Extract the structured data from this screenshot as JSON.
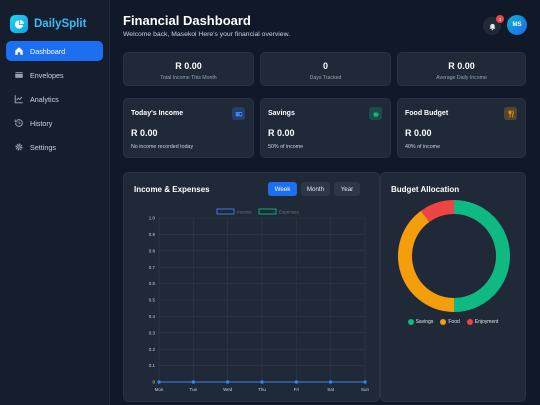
{
  "brand": {
    "name": "DailySplit"
  },
  "nav": [
    {
      "label": "Dashboard",
      "icon": "home-icon",
      "active": true
    },
    {
      "label": "Envelopes",
      "icon": "envelope-icon"
    },
    {
      "label": "Analytics",
      "icon": "line-chart-icon"
    },
    {
      "label": "History",
      "icon": "history-icon"
    },
    {
      "label": "Settings",
      "icon": "gear-icon"
    }
  ],
  "header": {
    "title": "Financial Dashboard",
    "subtitle": "Welcome back, Masekol Here's your financial overview.",
    "notification_count": "3",
    "avatar_initials": "MS"
  },
  "stats": [
    {
      "value": "R 0.00",
      "label": "Total Income This Month"
    },
    {
      "value": "0",
      "label": "Days Tracked"
    },
    {
      "value": "R 0.00",
      "label": "Average Daily Income"
    }
  ],
  "budget_cards": [
    {
      "title": "Today's Income",
      "amount": "R 0.00",
      "note": "No income recorded today",
      "icon": "wallet-icon",
      "color": "#3b82f6"
    },
    {
      "title": "Savings",
      "amount": "R 0.00",
      "note": "50% of income",
      "icon": "piggy-bank-icon",
      "color": "#10b981"
    },
    {
      "title": "Food Budget",
      "amount": "R 0.00",
      "note": "40% of income",
      "icon": "utensils-icon",
      "color": "#f59e0b"
    }
  ],
  "income_chart": {
    "title": "Income & Expenses",
    "tabs": [
      "Week",
      "Month",
      "Year"
    ],
    "active_tab": "Week"
  },
  "budget_panel": {
    "title": "Budget Allocation"
  },
  "chart_data": [
    {
      "type": "line",
      "categories": [
        "Mon",
        "Tue",
        "Wed",
        "Thu",
        "Fri",
        "Sat",
        "Sun"
      ],
      "series": [
        {
          "name": "Income",
          "values": [
            0,
            0,
            0,
            0,
            0,
            0,
            0
          ],
          "color": "#3b82f6"
        },
        {
          "name": "Expenses",
          "values": [
            0,
            0,
            0,
            0,
            0,
            0,
            0
          ],
          "color": "#10b981"
        }
      ],
      "y_ticks": [
        "0",
        "0.1",
        "0.2",
        "0.3",
        "0.4",
        "0.5",
        "0.6",
        "0.7",
        "0.8",
        "0.9",
        "1.0"
      ],
      "ylim": [
        0,
        1
      ],
      "grid": true,
      "legend": "top"
    },
    {
      "type": "pie",
      "donut": true,
      "labels": [
        "Savings",
        "Food",
        "Enjoyment"
      ],
      "values": [
        50,
        40,
        10
      ],
      "colors": [
        "#10b981",
        "#f59e0b",
        "#ef4444"
      ],
      "legend": "bottom"
    }
  ]
}
